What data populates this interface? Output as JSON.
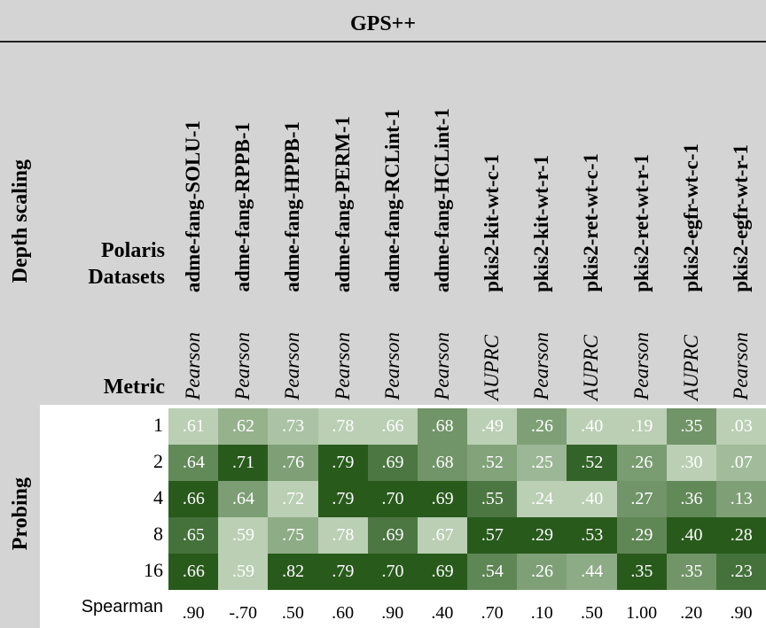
{
  "title": "GPS++",
  "side_label": "Depth scaling",
  "datasets_label": "Polaris Datasets",
  "metric_label": "Metric",
  "group_label": "Probing",
  "columns": [
    {
      "name": "adme-fang-SOLU-1",
      "metric": "Pearson"
    },
    {
      "name": "adme-fang-RPPB-1",
      "metric": "Pearson"
    },
    {
      "name": "adme-fang-HPPB-1",
      "metric": "Pearson"
    },
    {
      "name": "adme-fang-PERM-1",
      "metric": "Pearson"
    },
    {
      "name": "adme-fang-RCLint-1",
      "metric": "Pearson"
    },
    {
      "name": "adme-fang-HCLint-1",
      "metric": "Pearson"
    },
    {
      "name": "pkis2-kit-wt-c-1",
      "metric": "AUPRC"
    },
    {
      "name": "pkis2-kit-wt-r-1",
      "metric": "Pearson"
    },
    {
      "name": "pkis2-ret-wt-c-1",
      "metric": "AUPRC"
    },
    {
      "name": "pkis2-ret-wt-r-1",
      "metric": "Pearson"
    },
    {
      "name": "pkis2-egfr-wt-c-1",
      "metric": "AUPRC"
    },
    {
      "name": "pkis2-egfr-wt-r-1",
      "metric": "Pearson"
    }
  ],
  "rows": [
    {
      "label": "1",
      "cells": [
        ".61",
        ".62",
        ".73",
        ".78",
        ".66",
        ".68",
        ".49",
        ".26",
        ".40",
        ".19",
        ".35",
        ".03"
      ]
    },
    {
      "label": "2",
      "cells": [
        ".64",
        ".71",
        ".76",
        ".79",
        ".69",
        ".68",
        ".52",
        ".25",
        ".52",
        ".26",
        ".30",
        ".07"
      ]
    },
    {
      "label": "4",
      "cells": [
        ".66",
        ".64",
        ".72",
        ".79",
        ".70",
        ".69",
        ".55",
        ".24",
        ".40",
        ".27",
        ".36",
        ".13"
      ]
    },
    {
      "label": "8",
      "cells": [
        ".65",
        ".59",
        ".75",
        ".78",
        ".69",
        ".67",
        ".57",
        ".29",
        ".53",
        ".29",
        ".40",
        ".28"
      ]
    },
    {
      "label": "16",
      "cells": [
        ".66",
        ".59",
        ".82",
        ".79",
        ".70",
        ".69",
        ".54",
        ".26",
        ".44",
        ".35",
        ".35",
        ".23"
      ]
    }
  ],
  "spearman": {
    "label": "Spearman",
    "cells": [
      ".90",
      "-.70",
      ".50",
      ".60",
      ".90",
      ".40",
      ".70",
      ".10",
      ".50",
      "1.00",
      ".20",
      ".90"
    ]
  }
}
